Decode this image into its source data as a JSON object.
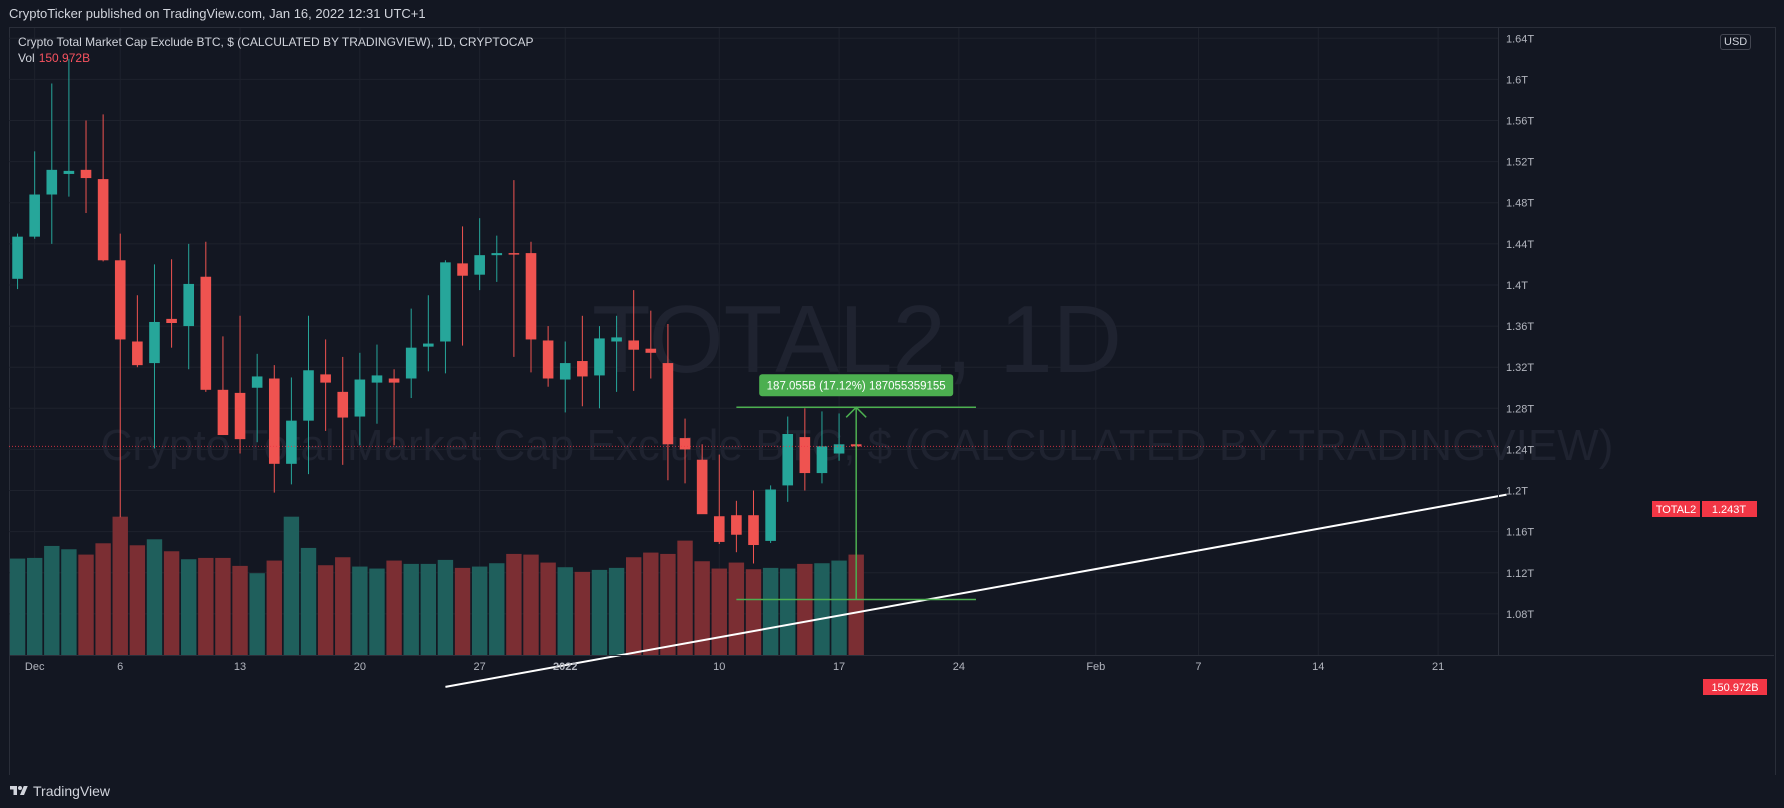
{
  "publication": {
    "text": "CryptoTicker published on TradingView.com, Jan 16, 2022 12:31 UTC+1"
  },
  "legend": {
    "title": "Crypto Total Market Cap Exclude BTC, $ (CALCULATED BY TRADINGVIEW), 1D, CRYPTOCAP",
    "vol_label": "Vol",
    "vol_value": "150.972B"
  },
  "watermark": {
    "symbol": "TOTAL2, 1D",
    "description": "Crypto Total Market Cap Exclude BTC, $ (CALCULATED BY TRADINGVIEW)"
  },
  "currency_badge": "USD",
  "price_labels": {
    "symbol_tag": "TOTAL2",
    "last_price": "1.243T",
    "volume": "150.972B"
  },
  "measure_label": "187.055B (17.12%) 187055359155",
  "footer": {
    "brand": "TradingView"
  },
  "colors": {
    "background": "#131722",
    "up": "#26a69a",
    "down": "#ef5350",
    "vol_up": "#1f5f5c",
    "vol_down": "#7b2e33",
    "grid": "#1e222d",
    "measure": "#4caf50",
    "trendline": "#ffffff",
    "last_line": "#f23645"
  },
  "chart_data": {
    "type": "candlestick",
    "title": "Crypto Total Market Cap Exclude BTC, $ (CALCULATED BY TRADINGVIEW), 1D, CRYPTOCAP",
    "unit": "T USD",
    "y_ticks": [
      "1.08T",
      "1.12T",
      "1.16T",
      "1.2T",
      "1.24T",
      "1.28T",
      "1.32T",
      "1.36T",
      "1.4T",
      "1.44T",
      "1.48T",
      "1.52T",
      "1.56T",
      "1.6T",
      "1.64T"
    ],
    "x_ticks": [
      "Dec",
      "6",
      "13",
      "20",
      "27",
      "2022",
      "10",
      "17",
      "24",
      "Feb",
      "7",
      "14",
      "21"
    ],
    "x_tick_dates": [
      "2021-12-01",
      "2021-12-06",
      "2021-12-13",
      "2021-12-20",
      "2021-12-27",
      "2022-01-01",
      "2022-01-10",
      "2022-01-17",
      "2022-01-24",
      "2022-02-01",
      "2022-02-07",
      "2022-02-14",
      "2022-02-21"
    ],
    "ylim": [
      1.04,
      1.65
    ],
    "xlim": [
      "2021-11-30",
      "2022-02-25"
    ],
    "candles": [
      {
        "date": "2021-11-30",
        "o": 1.406,
        "h": 1.45,
        "l": 1.396,
        "c": 1.447
      },
      {
        "date": "2021-12-01",
        "o": 1.447,
        "h": 1.53,
        "l": 1.445,
        "c": 1.488
      },
      {
        "date": "2021-12-02",
        "o": 1.488,
        "h": 1.596,
        "l": 1.44,
        "c": 1.512
      },
      {
        "date": "2021-12-03",
        "o": 1.508,
        "h": 1.62,
        "l": 1.486,
        "c": 1.511
      },
      {
        "date": "2021-12-04",
        "o": 1.512,
        "h": 1.56,
        "l": 1.47,
        "c": 1.504
      },
      {
        "date": "2021-12-05",
        "o": 1.503,
        "h": 1.566,
        "l": 1.423,
        "c": 1.424
      },
      {
        "date": "2021-12-06",
        "o": 1.424,
        "h": 1.45,
        "l": 1.174,
        "c": 1.347
      },
      {
        "date": "2021-12-07",
        "o": 1.345,
        "h": 1.39,
        "l": 1.32,
        "c": 1.322
      },
      {
        "date": "2021-12-08",
        "o": 1.324,
        "h": 1.42,
        "l": 1.241,
        "c": 1.364
      },
      {
        "date": "2021-12-09",
        "o": 1.367,
        "h": 1.425,
        "l": 1.339,
        "c": 1.363
      },
      {
        "date": "2021-12-10",
        "o": 1.36,
        "h": 1.44,
        "l": 1.318,
        "c": 1.401
      },
      {
        "date": "2021-12-11",
        "o": 1.408,
        "h": 1.442,
        "l": 1.296,
        "c": 1.298
      },
      {
        "date": "2021-12-12",
        "o": 1.298,
        "h": 1.35,
        "l": 1.254,
        "c": 1.254
      },
      {
        "date": "2021-12-13",
        "o": 1.295,
        "h": 1.37,
        "l": 1.236,
        "c": 1.25
      },
      {
        "date": "2021-12-14",
        "o": 1.3,
        "h": 1.333,
        "l": 1.247,
        "c": 1.311
      },
      {
        "date": "2021-12-15",
        "o": 1.309,
        "h": 1.322,
        "l": 1.198,
        "c": 1.226
      },
      {
        "date": "2021-12-16",
        "o": 1.226,
        "h": 1.31,
        "l": 1.206,
        "c": 1.268
      },
      {
        "date": "2021-12-17",
        "o": 1.268,
        "h": 1.37,
        "l": 1.216,
        "c": 1.317
      },
      {
        "date": "2021-12-18",
        "o": 1.313,
        "h": 1.347,
        "l": 1.258,
        "c": 1.305
      },
      {
        "date": "2021-12-19",
        "o": 1.296,
        "h": 1.33,
        "l": 1.225,
        "c": 1.271
      },
      {
        "date": "2021-12-20",
        "o": 1.272,
        "h": 1.334,
        "l": 1.244,
        "c": 1.308
      },
      {
        "date": "2021-12-21",
        "o": 1.305,
        "h": 1.342,
        "l": 1.265,
        "c": 1.312
      },
      {
        "date": "2021-12-22",
        "o": 1.309,
        "h": 1.318,
        "l": 1.244,
        "c": 1.305
      },
      {
        "date": "2021-12-23",
        "o": 1.309,
        "h": 1.377,
        "l": 1.29,
        "c": 1.339
      },
      {
        "date": "2021-12-24",
        "o": 1.34,
        "h": 1.39,
        "l": 1.316,
        "c": 1.343
      },
      {
        "date": "2021-12-25",
        "o": 1.345,
        "h": 1.424,
        "l": 1.314,
        "c": 1.422
      },
      {
        "date": "2021-12-26",
        "o": 1.421,
        "h": 1.457,
        "l": 1.341,
        "c": 1.409
      },
      {
        "date": "2021-12-27",
        "o": 1.41,
        "h": 1.465,
        "l": 1.395,
        "c": 1.429
      },
      {
        "date": "2021-12-28",
        "o": 1.429,
        "h": 1.448,
        "l": 1.403,
        "c": 1.431
      },
      {
        "date": "2021-12-29",
        "o": 1.431,
        "h": 1.502,
        "l": 1.33,
        "c": 1.43
      },
      {
        "date": "2021-12-30",
        "o": 1.431,
        "h": 1.442,
        "l": 1.315,
        "c": 1.347
      },
      {
        "date": "2021-12-31",
        "o": 1.346,
        "h": 1.36,
        "l": 1.301,
        "c": 1.309
      },
      {
        "date": "2022-01-01",
        "o": 1.308,
        "h": 1.345,
        "l": 1.276,
        "c": 1.324
      },
      {
        "date": "2022-01-02",
        "o": 1.326,
        "h": 1.37,
        "l": 1.282,
        "c": 1.311
      },
      {
        "date": "2022-01-03",
        "o": 1.312,
        "h": 1.36,
        "l": 1.28,
        "c": 1.348
      },
      {
        "date": "2022-01-04",
        "o": 1.345,
        "h": 1.37,
        "l": 1.296,
        "c": 1.349
      },
      {
        "date": "2022-01-05",
        "o": 1.346,
        "h": 1.395,
        "l": 1.297,
        "c": 1.337
      },
      {
        "date": "2022-01-06",
        "o": 1.338,
        "h": 1.375,
        "l": 1.309,
        "c": 1.334
      },
      {
        "date": "2022-01-07",
        "o": 1.324,
        "h": 1.362,
        "l": 1.21,
        "c": 1.245
      },
      {
        "date": "2022-01-08",
        "o": 1.251,
        "h": 1.27,
        "l": 1.207,
        "c": 1.24
      },
      {
        "date": "2022-01-09",
        "o": 1.23,
        "h": 1.245,
        "l": 1.181,
        "c": 1.177
      },
      {
        "date": "2022-01-10",
        "o": 1.175,
        "h": 1.235,
        "l": 1.148,
        "c": 1.15
      },
      {
        "date": "2022-01-11",
        "o": 1.176,
        "h": 1.19,
        "l": 1.14,
        "c": 1.157
      },
      {
        "date": "2022-01-12",
        "o": 1.176,
        "h": 1.2,
        "l": 1.129,
        "c": 1.147
      },
      {
        "date": "2022-01-13",
        "o": 1.151,
        "h": 1.205,
        "l": 1.149,
        "c": 1.201
      },
      {
        "date": "2022-01-14",
        "o": 1.205,
        "h": 1.272,
        "l": 1.189,
        "c": 1.255
      },
      {
        "date": "2022-01-15",
        "o": 1.252,
        "h": 1.28,
        "l": 1.2,
        "c": 1.217
      },
      {
        "date": "2022-01-16",
        "o": 1.217,
        "h": 1.277,
        "l": 1.207,
        "c": 1.243
      },
      {
        "date": "2022-01-17",
        "o": 1.236,
        "h": 1.275,
        "l": 1.229,
        "c": 1.245
      },
      {
        "date": "2022-01-18",
        "o": 1.245,
        "h": 1.259,
        "l": 1.233,
        "c": 1.243
      }
    ],
    "volume_label": "Vol",
    "volume_unit": "B USD",
    "volumes": [
      145,
      146,
      164,
      159,
      151,
      168,
      208,
      165,
      174,
      156,
      144,
      146,
      146,
      134,
      123,
      142,
      208,
      161,
      135,
      147,
      133,
      130,
      142,
      137,
      137,
      143,
      131,
      133,
      138,
      152,
      151,
      139,
      132,
      125,
      128,
      131,
      147,
      154,
      152,
      172,
      141,
      130,
      139,
      129,
      131,
      130,
      137,
      138,
      142,
      151
    ],
    "last_price": 1.243,
    "trendline": {
      "start": {
        "date": "2021-12-25",
        "value": 1.009
      },
      "end": {
        "date": "2022-02-25",
        "value": 1.196
      }
    },
    "measure": {
      "from": 1.094,
      "to": 1.281,
      "date": "2022-01-18",
      "span": [
        "2022-01-11",
        "2022-01-25"
      ],
      "label": "187.055B (17.12%) 187055359155"
    }
  }
}
